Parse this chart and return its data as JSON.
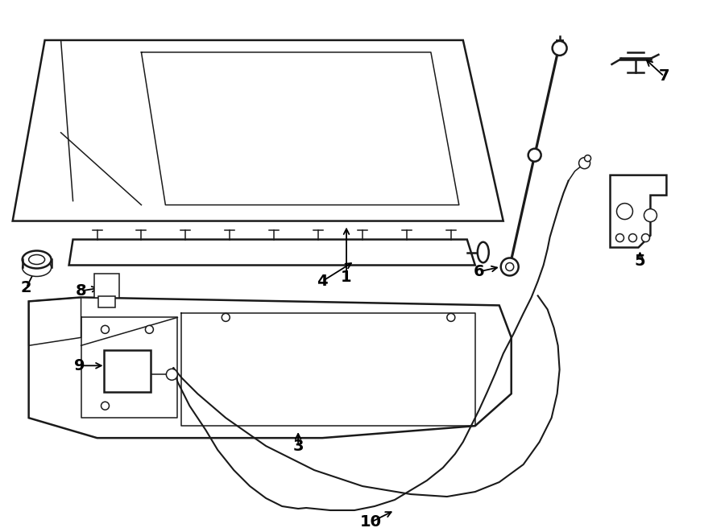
{
  "bg_color": "#ffffff",
  "line_color": "#1a1a1a",
  "lw_main": 1.8,
  "lw_thin": 1.1,
  "fig_width": 9.0,
  "fig_height": 6.61,
  "dpi": 100
}
